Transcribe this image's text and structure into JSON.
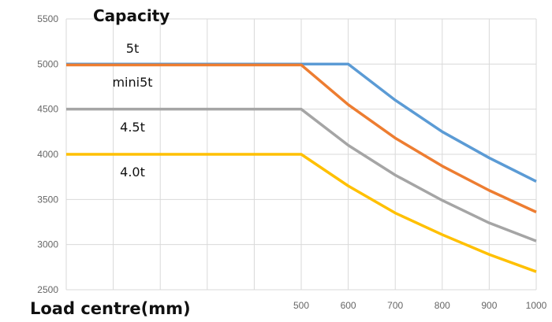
{
  "chart_data": {
    "type": "line",
    "title": "Capacity",
    "xlabel": "Load centre(mm)",
    "ylabel": "",
    "xlim": [
      0,
      1000
    ],
    "ylim": [
      2500,
      5500
    ],
    "x_ticks": [
      500,
      600,
      700,
      800,
      900,
      1000
    ],
    "y_ticks": [
      2500,
      3000,
      3500,
      4000,
      4500,
      5000,
      5500
    ],
    "grid": true,
    "series": [
      {
        "name": "5t",
        "color": "#5b9bd5",
        "x": [
          0,
          500,
          600,
          700,
          800,
          900,
          1000
        ],
        "y": [
          5000,
          5000,
          5000,
          4600,
          4250,
          3960,
          3700
        ]
      },
      {
        "name": "mini5t",
        "color": "#ed7d31",
        "x": [
          0,
          500,
          600,
          700,
          800,
          900,
          1000
        ],
        "y": [
          4990,
          4990,
          4550,
          4180,
          3870,
          3600,
          3360
        ]
      },
      {
        "name": "4.5t",
        "color": "#a5a5a5",
        "x": [
          0,
          500,
          600,
          700,
          800,
          900,
          1000
        ],
        "y": [
          4500,
          4500,
          4100,
          3770,
          3490,
          3240,
          3040
        ]
      },
      {
        "name": "4.0t",
        "color": "#ffc000",
        "x": [
          0,
          500,
          600,
          700,
          800,
          900,
          1000
        ],
        "y": [
          4000,
          4000,
          3650,
          3350,
          3110,
          2890,
          2700
        ]
      }
    ]
  }
}
